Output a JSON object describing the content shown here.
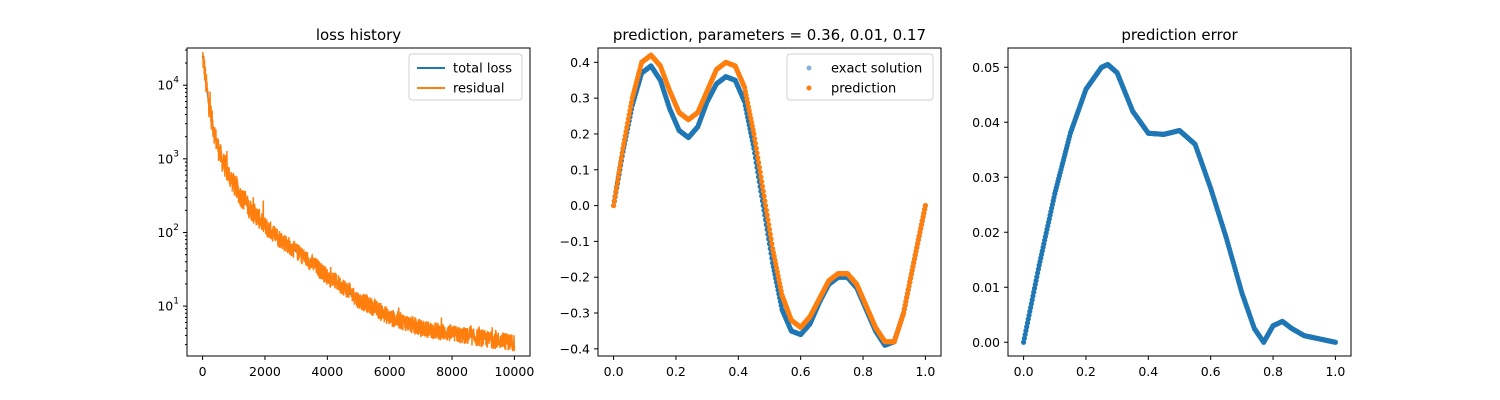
{
  "chart_data": [
    {
      "type": "line",
      "title": "loss history",
      "xlabel": "",
      "ylabel": "",
      "xscale": "linear",
      "yscale": "log",
      "xlim": [
        -500,
        10500
      ],
      "ylim": [
        2.1,
        32000
      ],
      "xticks": [
        0,
        2000,
        4000,
        6000,
        8000,
        10000
      ],
      "xtick_labels": [
        "0",
        "2000",
        "4000",
        "6000",
        "8000",
        "10000"
      ],
      "yticks": [
        10,
        100,
        1000,
        10000
      ],
      "ytick_labels": [
        "10",
        "10",
        "10",
        "10"
      ],
      "ytick_exponents": [
        "1",
        "2",
        "3",
        "4"
      ],
      "legend": "top-right",
      "series": [
        {
          "name": "total loss",
          "color": "#1f77b4",
          "x": [
            0,
            50,
            100,
            150,
            200,
            300,
            400,
            500,
            600,
            800,
            1000,
            1200,
            1500,
            2000,
            2500,
            3000,
            3500,
            4000,
            5000,
            6000,
            7000,
            8000,
            9000,
            10000
          ],
          "y": [
            25000,
            18000,
            11000,
            8000,
            5500,
            3200,
            2000,
            1400,
            1000,
            650,
            450,
            320,
            210,
            120,
            80,
            55,
            38,
            25,
            12,
            7,
            5,
            4.2,
            3.6,
            3.2
          ]
        },
        {
          "name": "residual",
          "color": "#ff7f0e",
          "x": [
            0,
            50,
            100,
            150,
            200,
            300,
            400,
            500,
            600,
            800,
            1000,
            1200,
            1500,
            2000,
            2500,
            3000,
            3500,
            4000,
            5000,
            6000,
            7000,
            8000,
            9000,
            10000
          ],
          "y": [
            25000,
            18000,
            11000,
            8000,
            5500,
            3200,
            2000,
            1400,
            1000,
            650,
            450,
            320,
            210,
            120,
            80,
            55,
            38,
            25,
            12,
            7,
            5,
            4.2,
            3.6,
            3.2
          ]
        }
      ]
    },
    {
      "type": "scatter",
      "title": "prediction, parameters = 0.36, 0.01, 0.17",
      "xlabel": "",
      "ylabel": "",
      "xlim": [
        -0.05,
        1.05
      ],
      "ylim": [
        -0.42,
        0.44
      ],
      "xticks": [
        0.0,
        0.2,
        0.4,
        0.6,
        0.8,
        1.0
      ],
      "xtick_labels": [
        "0.0",
        "0.2",
        "0.4",
        "0.6",
        "0.8",
        "1.0"
      ],
      "yticks": [
        -0.4,
        -0.3,
        -0.2,
        -0.1,
        0.0,
        0.1,
        0.2,
        0.3,
        0.4
      ],
      "ytick_labels": [
        "−0.4",
        "−0.3",
        "−0.2",
        "−0.1",
        "0.0",
        "0.1",
        "0.2",
        "0.3",
        "0.4"
      ],
      "legend": "top-right",
      "series": [
        {
          "name": "exact solution",
          "color": "#1f77b4",
          "x": [
            0.0,
            0.03,
            0.06,
            0.09,
            0.12,
            0.15,
            0.18,
            0.21,
            0.24,
            0.27,
            0.3,
            0.33,
            0.36,
            0.39,
            0.42,
            0.45,
            0.48,
            0.51,
            0.54,
            0.57,
            0.6,
            0.63,
            0.66,
            0.69,
            0.72,
            0.75,
            0.78,
            0.81,
            0.84,
            0.87,
            0.9,
            0.93,
            0.96,
            1.0
          ],
          "y": [
            0.0,
            0.15,
            0.28,
            0.37,
            0.39,
            0.35,
            0.27,
            0.21,
            0.19,
            0.22,
            0.29,
            0.34,
            0.36,
            0.35,
            0.29,
            0.16,
            0.0,
            -0.16,
            -0.29,
            -0.35,
            -0.36,
            -0.33,
            -0.27,
            -0.22,
            -0.2,
            -0.2,
            -0.23,
            -0.29,
            -0.35,
            -0.39,
            -0.38,
            -0.3,
            -0.17,
            0.0
          ]
        },
        {
          "name": "prediction",
          "color": "#ff7f0e",
          "x": [
            0.0,
            0.03,
            0.06,
            0.09,
            0.12,
            0.15,
            0.18,
            0.21,
            0.24,
            0.27,
            0.3,
            0.33,
            0.36,
            0.39,
            0.42,
            0.45,
            0.48,
            0.51,
            0.54,
            0.57,
            0.6,
            0.63,
            0.66,
            0.69,
            0.72,
            0.75,
            0.78,
            0.81,
            0.84,
            0.87,
            0.9,
            0.93,
            0.96,
            1.0
          ],
          "y": [
            0.0,
            0.16,
            0.3,
            0.4,
            0.42,
            0.39,
            0.32,
            0.26,
            0.24,
            0.26,
            0.32,
            0.38,
            0.4,
            0.39,
            0.33,
            0.2,
            0.04,
            -0.12,
            -0.25,
            -0.32,
            -0.34,
            -0.31,
            -0.26,
            -0.21,
            -0.19,
            -0.19,
            -0.22,
            -0.28,
            -0.34,
            -0.38,
            -0.38,
            -0.3,
            -0.17,
            0.0
          ]
        }
      ]
    },
    {
      "type": "scatter",
      "title": "prediction error",
      "xlabel": "",
      "ylabel": "",
      "xlim": [
        -0.05,
        1.05
      ],
      "ylim": [
        -0.0025,
        0.0535
      ],
      "xticks": [
        0.0,
        0.2,
        0.4,
        0.6,
        0.8,
        1.0
      ],
      "xtick_labels": [
        "0.0",
        "0.2",
        "0.4",
        "0.6",
        "0.8",
        "1.0"
      ],
      "yticks": [
        0.0,
        0.01,
        0.02,
        0.03,
        0.04,
        0.05
      ],
      "ytick_labels": [
        "0.00",
        "0.01",
        "0.02",
        "0.03",
        "0.04",
        "0.05"
      ],
      "series": [
        {
          "color": "#1f77b4",
          "x": [
            0.0,
            0.05,
            0.1,
            0.15,
            0.2,
            0.25,
            0.27,
            0.3,
            0.35,
            0.4,
            0.45,
            0.5,
            0.55,
            0.6,
            0.65,
            0.7,
            0.74,
            0.77,
            0.8,
            0.83,
            0.86,
            0.9,
            0.95,
            1.0
          ],
          "y": [
            0.0,
            0.014,
            0.027,
            0.038,
            0.046,
            0.05,
            0.0505,
            0.049,
            0.042,
            0.038,
            0.0378,
            0.0385,
            0.036,
            0.028,
            0.019,
            0.009,
            0.0025,
            0.0,
            0.003,
            0.0038,
            0.0025,
            0.0012,
            0.0006,
            0.0
          ]
        }
      ]
    }
  ]
}
